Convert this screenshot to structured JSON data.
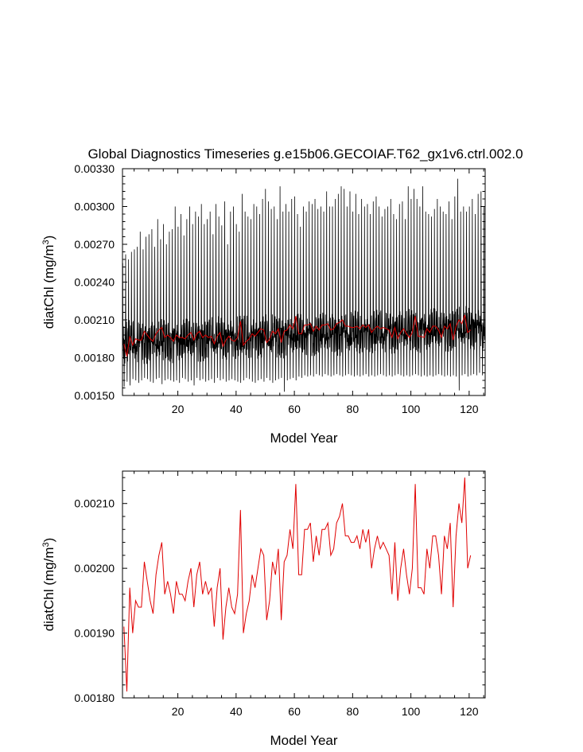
{
  "page": {
    "title": "Global Diagnostics Timeseries g.e15b06.GECOIAF.T62_gx1v6.ctrl.002.0"
  },
  "colors": {
    "monthly_line": "#000000",
    "annual_line": "#e00000",
    "axis": "#000000",
    "background": "#ffffff"
  },
  "chart_data": [
    {
      "type": "line",
      "title": "Global Diagnostics Timeseries g.e15b06.GECOIAF.T62_gx1v6.ctrl.002.0",
      "xlabel": "Model Year",
      "ylabel_main": "diatChl (mg/m",
      "ylabel_sup": "3",
      "ylabel_close": ")",
      "xlim": [
        1,
        125.5
      ],
      "ylim": [
        0.0015,
        0.0033
      ],
      "xticks": [
        20,
        40,
        60,
        80,
        100,
        120
      ],
      "yticks": [
        0.0015,
        0.0018,
        0.0021,
        0.0024,
        0.0027,
        0.003,
        0.0033
      ],
      "ytick_labels": [
        "0.00150",
        "0.00180",
        "0.00210",
        "0.00240",
        "0.00270",
        "0.00300",
        "0.00330"
      ],
      "grid": false,
      "series": [
        {
          "color": "#000000",
          "kind": "monthly",
          "peaks": [
            0.00255,
            0.00262,
            0.00258,
            0.00264,
            0.00266,
            0.00268,
            0.0028,
            0.00266,
            0.00276,
            0.00278,
            0.00282,
            0.00268,
            0.0029,
            0.00274,
            0.00286,
            0.0027,
            0.0028,
            0.00282,
            0.003,
            0.00284,
            0.00294,
            0.00277,
            0.0029,
            0.003,
            0.00286,
            0.00296,
            0.00292,
            0.00302,
            0.00286,
            0.0029,
            0.00296,
            0.00278,
            0.00302,
            0.00292,
            0.00285,
            0.00304,
            0.0027,
            0.00296,
            0.003,
            0.00286,
            0.0028,
            0.0031,
            0.00296,
            0.00292,
            0.0029,
            0.00302,
            0.003,
            0.00294,
            0.00306,
            0.00314,
            0.00304,
            0.00298,
            0.003,
            0.0029,
            0.00316,
            0.00296,
            0.00302,
            0.00296,
            0.00306,
            0.00308,
            0.00294,
            0.00284,
            0.003,
            0.00296,
            0.00304,
            0.00302,
            0.00306,
            0.00298,
            0.003,
            0.00296,
            0.00312,
            0.003,
            0.003,
            0.00306,
            0.0031,
            0.00316,
            0.00314,
            0.003,
            0.00312,
            0.00296,
            0.0031,
            0.00294,
            0.00306,
            0.003,
            0.00302,
            0.00294,
            0.00304,
            0.00308,
            0.003,
            0.00292,
            0.00298,
            0.003,
            0.00306,
            0.00294,
            0.0029,
            0.00302,
            0.00304,
            0.0029,
            0.00316,
            0.00306,
            0.00314,
            0.00306,
            0.003,
            0.00316,
            0.00296,
            0.00294,
            0.00292,
            0.00298,
            0.00306,
            0.003,
            0.00296,
            0.00294,
            0.00304,
            0.0029,
            0.00308,
            0.00322,
            0.00296,
            0.003,
            0.00296,
            0.003,
            0.00306,
            0.00294,
            0.0031,
            0.00312,
            0.003
          ],
          "troughs": [
            0.00157,
            0.00161,
            0.00158,
            0.00163,
            0.00162,
            0.0016,
            0.00162,
            0.00164,
            0.00163,
            0.00161,
            0.0016,
            0.00163,
            0.00164,
            0.00159,
            0.00162,
            0.00163,
            0.00162,
            0.00161,
            0.00162,
            0.0016,
            0.00164,
            0.00163,
            0.00161,
            0.00162,
            0.00158,
            0.00164,
            0.00162,
            0.00163,
            0.00161,
            0.00162,
            0.00163,
            0.0016,
            0.00164,
            0.00162,
            0.00163,
            0.00161,
            0.00162,
            0.00163,
            0.00162,
            0.00161,
            0.0016,
            0.00162,
            0.00164,
            0.00163,
            0.00161,
            0.0016,
            0.00162,
            0.00163,
            0.00161,
            0.00164,
            0.00162,
            0.0016,
            0.00162,
            0.00163,
            0.00164,
            0.00153,
            0.00162,
            0.00163,
            0.00164,
            0.00162,
            0.00165,
            0.00164,
            0.00166,
            0.00165,
            0.00166,
            0.00165,
            0.00167,
            0.00166,
            0.00165,
            0.00167,
            0.00166,
            0.00165,
            0.00166,
            0.00167,
            0.00166,
            0.00165,
            0.00166,
            0.00167,
            0.00166,
            0.00165,
            0.00166,
            0.00165,
            0.00166,
            0.00167,
            0.00165,
            0.00166,
            0.00165,
            0.00166,
            0.00167,
            0.00166,
            0.00165,
            0.00166,
            0.00165,
            0.00166,
            0.00167,
            0.00166,
            0.00165,
            0.00166,
            0.00165,
            0.00166,
            0.00167,
            0.00166,
            0.00165,
            0.00166,
            0.00165,
            0.00166,
            0.00165,
            0.00166,
            0.00167,
            0.00166,
            0.00165,
            0.00166,
            0.00165,
            0.00166,
            0.00165,
            0.00154,
            0.00166,
            0.00167,
            0.00165,
            0.00166,
            0.00167,
            0.00166,
            0.00168,
            0.00166,
            0.00168
          ]
        },
        {
          "color": "#e00000",
          "kind": "annual",
          "x_start": 1.5,
          "values": [
            0.00191,
            0.00181,
            0.00197,
            0.0019,
            0.00195,
            0.00194,
            0.00194,
            0.00201,
            0.00198,
            0.00195,
            0.00193,
            0.00199,
            0.00202,
            0.00204,
            0.00196,
            0.00198,
            0.00196,
            0.00193,
            0.00198,
            0.00196,
            0.00196,
            0.00195,
            0.00198,
            0.002,
            0.00194,
            0.00199,
            0.00201,
            0.00196,
            0.00198,
            0.00196,
            0.00197,
            0.00191,
            0.00197,
            0.002,
            0.00189,
            0.00194,
            0.00197,
            0.00194,
            0.00193,
            0.00196,
            0.00209,
            0.0019,
            0.00193,
            0.00195,
            0.00199,
            0.00197,
            0.002,
            0.00203,
            0.00202,
            0.00192,
            0.00195,
            0.00201,
            0.00199,
            0.00203,
            0.00192,
            0.00201,
            0.00202,
            0.00206,
            0.00203,
            0.00213,
            0.00199,
            0.00199,
            0.00206,
            0.00206,
            0.00207,
            0.00201,
            0.00205,
            0.00202,
            0.00206,
            0.00206,
            0.00207,
            0.00202,
            0.00203,
            0.00207,
            0.00208,
            0.0021,
            0.00205,
            0.00205,
            0.00204,
            0.00204,
            0.00205,
            0.00203,
            0.00206,
            0.00204,
            0.00206,
            0.002,
            0.00203,
            0.00205,
            0.00203,
            0.00204,
            0.00203,
            0.00202,
            0.00196,
            0.00204,
            0.00195,
            0.002,
            0.00203,
            0.00199,
            0.00196,
            0.002,
            0.00213,
            0.00197,
            0.00197,
            0.00196,
            0.00203,
            0.002,
            0.00205,
            0.00205,
            0.00202,
            0.00196,
            0.00205,
            0.00203,
            0.00207,
            0.00194,
            0.00205,
            0.0021,
            0.00207,
            0.00214,
            0.002,
            0.00202
          ]
        }
      ]
    },
    {
      "type": "line",
      "title": "",
      "xlabel": "Model Year",
      "ylabel_main": "diatChl (mg/m",
      "ylabel_sup": "3",
      "ylabel_close": ")",
      "xlim": [
        1,
        125.5
      ],
      "ylim": [
        0.0018,
        0.00215
      ],
      "xticks": [
        20,
        40,
        60,
        80,
        100,
        120
      ],
      "yticks": [
        0.0018,
        0.0019,
        0.002,
        0.0021
      ],
      "ytick_labels": [
        "0.00180",
        "0.00190",
        "0.00200",
        "0.00210"
      ],
      "grid": false,
      "series": [
        {
          "color": "#e00000",
          "kind": "annual",
          "x_start": 1.5,
          "values": [
            0.00191,
            0.00181,
            0.00197,
            0.0019,
            0.00195,
            0.00194,
            0.00194,
            0.00201,
            0.00198,
            0.00195,
            0.00193,
            0.00199,
            0.00202,
            0.00204,
            0.00196,
            0.00198,
            0.00196,
            0.00193,
            0.00198,
            0.00196,
            0.00196,
            0.00195,
            0.00198,
            0.002,
            0.00194,
            0.00199,
            0.00201,
            0.00196,
            0.00198,
            0.00196,
            0.00197,
            0.00191,
            0.00197,
            0.002,
            0.00189,
            0.00194,
            0.00197,
            0.00194,
            0.00193,
            0.00196,
            0.00209,
            0.0019,
            0.00193,
            0.00195,
            0.00199,
            0.00197,
            0.002,
            0.00203,
            0.00202,
            0.00192,
            0.00195,
            0.00201,
            0.00199,
            0.00203,
            0.00192,
            0.00201,
            0.00202,
            0.00206,
            0.00203,
            0.00213,
            0.00199,
            0.00199,
            0.00206,
            0.00206,
            0.00207,
            0.00201,
            0.00205,
            0.00202,
            0.00206,
            0.00206,
            0.00207,
            0.00202,
            0.00203,
            0.00207,
            0.00208,
            0.0021,
            0.00205,
            0.00205,
            0.00204,
            0.00204,
            0.00205,
            0.00203,
            0.00206,
            0.00204,
            0.00206,
            0.002,
            0.00203,
            0.00205,
            0.00203,
            0.00204,
            0.00203,
            0.00202,
            0.00196,
            0.00204,
            0.00195,
            0.002,
            0.00203,
            0.00199,
            0.00196,
            0.002,
            0.00213,
            0.00197,
            0.00197,
            0.00196,
            0.00203,
            0.002,
            0.00205,
            0.00205,
            0.00202,
            0.00196,
            0.00205,
            0.00203,
            0.00207,
            0.00194,
            0.00205,
            0.0021,
            0.00207,
            0.00214,
            0.002,
            0.00202
          ]
        }
      ]
    }
  ]
}
